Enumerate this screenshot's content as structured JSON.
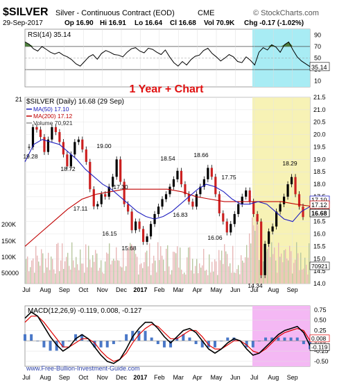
{
  "header": {
    "symbol": "$SILVER",
    "name": "Silver - Continuous Contract (EOD)",
    "exchange": "CME",
    "brand": "© StockCharts.com",
    "date": "29-Sep-2017",
    "quote": {
      "open": "Op 16.90",
      "high": "Hi 16.91",
      "low": "Lo 16.64",
      "close": "Cl 16.68",
      "volume": "Vol 70.9K",
      "change": "Chg -0.17 (-1.02%)"
    }
  },
  "annotation": "1 Year + Chart",
  "footer_url": "www.Free-Bullion-Investment-Guide.com",
  "colors": {
    "price": "#000000",
    "ma50": "#2020c0",
    "ma200": "#c00000",
    "volume": "#e8b8b8",
    "volume_up": "#b8c8a0",
    "rsi_fill": "#4f7f3f",
    "rsi_low": "#b04040",
    "highlight_recent": "#f7f2b5",
    "highlight_rsi": "#a8ecf4",
    "highlight_macd": "#f4b8f4",
    "macd": "#000000",
    "macd_signal": "#e00000",
    "histogram": "#4a78c8",
    "current_price_tag": "#000000"
  },
  "chart_data": [
    {
      "type": "line",
      "title": "RSI(14) 35.14",
      "series": [
        {
          "name": "RSI(14)",
          "values": [
            78,
            74,
            66,
            62,
            70,
            65,
            60,
            57,
            60,
            55,
            52,
            47,
            40,
            36,
            44,
            52,
            56,
            48,
            58,
            63,
            60,
            56,
            55,
            52,
            60,
            66,
            68,
            62,
            59,
            67,
            65,
            60,
            56,
            64,
            52,
            42,
            36,
            44,
            38,
            47,
            53,
            55,
            63,
            67,
            58,
            52,
            45,
            50,
            56,
            52,
            44,
            42,
            52,
            46,
            38,
            60,
            68,
            64,
            73,
            69,
            60,
            73,
            78,
            64,
            52,
            45,
            40,
            35.14
          ]
        }
      ],
      "yticks": [
        90,
        70,
        50,
        30,
        10
      ],
      "ylim": [
        0,
        100
      ],
      "reference_lines": [
        70,
        30
      ],
      "current_label": "35.14"
    },
    {
      "type": "line",
      "title": "$SILVER (Daily) 16.68 (29 Sep)",
      "legend": [
        "MA(50) 17.10",
        "MA(200) 17.12",
        "Volume 70,921"
      ],
      "legend_position": "top-left",
      "x_start": "2016-07-01",
      "x_end": "2017-09-29",
      "xticks": [
        "Jul",
        "Aug",
        "Sep",
        "Oct",
        "Nov",
        "Dec",
        "2017",
        "Feb",
        "Mar",
        "Apr",
        "May",
        "Jun",
        "Jul",
        "Aug",
        "Sep"
      ],
      "ylim": [
        14.0,
        21.5
      ],
      "yticks": [
        "21.5",
        "21.0",
        "20.5",
        "20.0",
        "19.5",
        "19.0",
        "18.5",
        "18.0",
        "17.5",
        "17.0",
        "16.5",
        "16.0",
        "15.5",
        "15.0",
        "14.5",
        "14.0"
      ],
      "left_axis_label": "21",
      "volume_ticks": [
        "200K",
        "150K",
        "100K",
        "50000"
      ],
      "series": [
        {
          "name": "$SILVER",
          "values": [
            19.5,
            20.3,
            20.2,
            19.9,
            19.3,
            19.8,
            20.3,
            20.1,
            19.7,
            19.2,
            18.72,
            19.2,
            19.7,
            19.8,
            19.4,
            18.9,
            17.8,
            17.11,
            17.2,
            17.6,
            17.5,
            17.9,
            18.3,
            19.0,
            18.1,
            17.2,
            16.9,
            16.15,
            16.5,
            16.2,
            15.68,
            15.9,
            16.4,
            16.8,
            17.1,
            17.4,
            17.6,
            17.9,
            18.2,
            18.54,
            18.0,
            17.6,
            17.3,
            17.1,
            17.6,
            17.9,
            18.2,
            18.66,
            18.3,
            17.6,
            16.83,
            16.5,
            16.06,
            16.4,
            16.8,
            17.2,
            17.5,
            17.75,
            17.3,
            16.8,
            16.5,
            14.34,
            15.6,
            16.1,
            16.3,
            16.9,
            17.2,
            17.5,
            18.0,
            18.29,
            17.6,
            17.1,
            16.68
          ]
        },
        {
          "name": "MA(50)",
          "values": [
            18.9,
            19.6,
            19.8,
            19.7,
            19.6,
            19.3,
            19.0,
            18.6,
            18.3,
            18.0,
            17.8,
            17.5,
            17.2,
            16.9,
            16.7,
            16.6,
            16.7,
            16.9,
            17.2,
            17.5,
            17.8,
            18.0,
            17.9,
            17.7,
            17.4,
            17.2,
            17.2,
            17.3,
            17.2,
            16.9,
            16.6,
            16.5,
            16.9,
            17.1
          ]
        },
        {
          "name": "MA(200)",
          "values": [
            15.5,
            16.0,
            16.5,
            17.0,
            17.4,
            17.6,
            17.7,
            17.8,
            17.8,
            17.8,
            17.8,
            17.7,
            17.5,
            17.4,
            17.3,
            17.3,
            17.3,
            17.3,
            17.3,
            17.2,
            17.12
          ]
        }
      ],
      "point_labels": [
        "19.28",
        "18.72",
        "17.11",
        "19.00",
        "17.30",
        "16.15",
        "15.68",
        "18.54",
        "16.83",
        "18.66",
        "17.75",
        "16.06",
        "14.34",
        "18.29"
      ],
      "price_tags": [
        "17.10",
        "17.12",
        "16.68"
      ],
      "volume_label": "70921",
      "highlight": "Jul-Sep 2017"
    },
    {
      "type": "line",
      "title": "MACD(12,26,9) -0.119, 0.008, -0.127",
      "series": [
        {
          "name": "MACD(12,26,9)",
          "values": [
            0.55,
            0.7,
            0.6,
            0.35,
            0.1,
            -0.1,
            -0.25,
            -0.15,
            0.05,
            0.15,
            0.05,
            -0.15,
            -0.35,
            -0.5,
            -0.55,
            -0.45,
            -0.2,
            0.1,
            0.3,
            0.45,
            0.45,
            0.3,
            0.1,
            -0.05,
            0.1,
            0.25,
            0.3,
            0.2,
            0.0,
            -0.2,
            -0.3,
            -0.2,
            -0.05,
            0.05,
            0.0,
            -0.2,
            -0.35,
            -0.3,
            -0.15,
            0.0,
            0.15,
            0.25,
            0.3,
            0.35,
            0.2,
            -0.119
          ]
        },
        {
          "name": "Signal",
          "values": [
            0.45,
            0.6,
            0.6,
            0.45,
            0.25,
            0.05,
            -0.15,
            -0.15,
            -0.05,
            0.05,
            0.05,
            -0.05,
            -0.25,
            -0.4,
            -0.5,
            -0.45,
            -0.3,
            -0.05,
            0.15,
            0.3,
            0.4,
            0.35,
            0.2,
            0.05,
            0.05,
            0.15,
            0.25,
            0.25,
            0.1,
            -0.1,
            -0.2,
            -0.2,
            -0.1,
            0.0,
            0.0,
            -0.1,
            -0.25,
            -0.3,
            -0.2,
            -0.05,
            0.1,
            0.2,
            0.25,
            0.3,
            0.25,
            0.008
          ]
        }
      ],
      "yticks": [
        "0.75",
        "0.50",
        "0.25",
        "0.00",
        "-0.25",
        "-0.50"
      ],
      "ylim": [
        -0.62,
        0.85
      ],
      "price_tags": [
        "0.008",
        "-0.119"
      ],
      "xticks": [
        "Jul",
        "Aug",
        "Sep",
        "Oct",
        "Nov",
        "Dec",
        "2017",
        "Feb",
        "Mar",
        "Apr",
        "May",
        "Jun",
        "Jul",
        "Aug",
        "Sep"
      ]
    }
  ]
}
